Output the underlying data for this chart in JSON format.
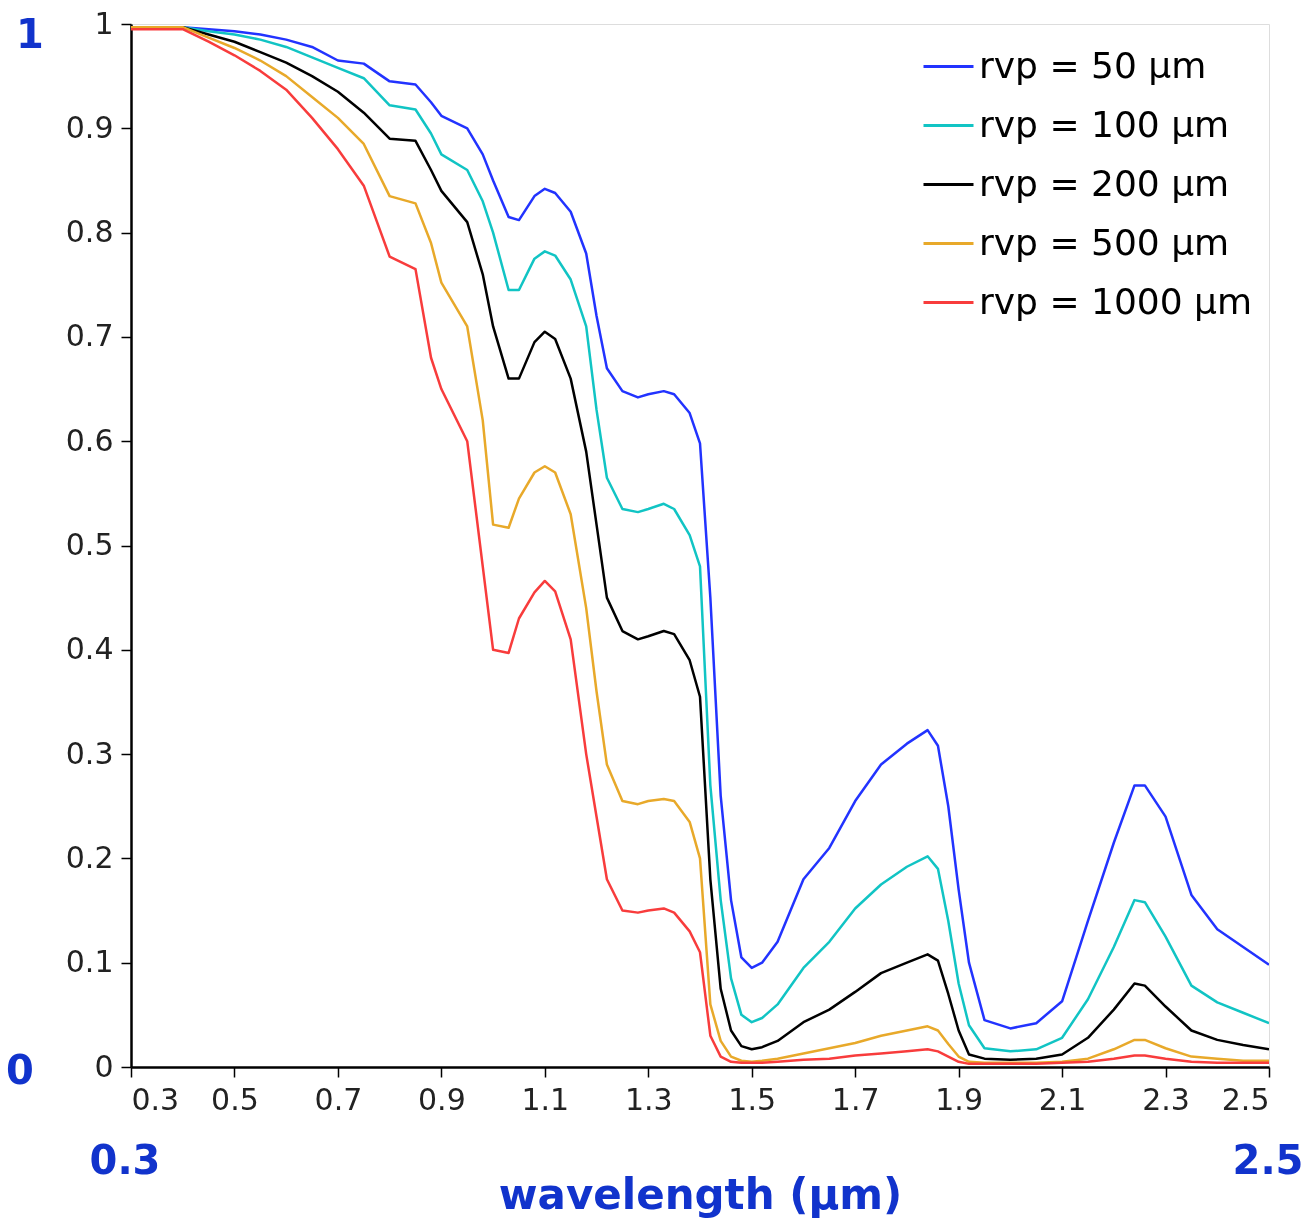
{
  "chart_data": {
    "type": "line",
    "xlabel": "wavelength (μm)",
    "x": [
      0.3,
      0.4,
      0.45,
      0.5,
      0.55,
      0.6,
      0.65,
      0.7,
      0.75,
      0.8,
      0.85,
      0.88,
      0.9,
      0.95,
      0.98,
      1.0,
      1.03,
      1.05,
      1.08,
      1.1,
      1.12,
      1.15,
      1.18,
      1.2,
      1.22,
      1.25,
      1.28,
      1.3,
      1.33,
      1.35,
      1.38,
      1.4,
      1.42,
      1.44,
      1.46,
      1.48,
      1.5,
      1.52,
      1.55,
      1.6,
      1.65,
      1.7,
      1.75,
      1.8,
      1.84,
      1.86,
      1.88,
      1.9,
      1.92,
      1.95,
      2.0,
      2.05,
      2.1,
      2.15,
      2.2,
      2.24,
      2.26,
      2.3,
      2.35,
      2.4,
      2.45,
      2.5
    ],
    "series": [
      {
        "name": "rvp = 50 μm",
        "color": "#2233ff",
        "values": [
          0.997,
          0.997,
          0.995,
          0.993,
          0.99,
          0.985,
          0.978,
          0.965,
          0.962,
          0.945,
          0.942,
          0.925,
          0.912,
          0.9,
          0.875,
          0.85,
          0.815,
          0.812,
          0.835,
          0.842,
          0.838,
          0.82,
          0.78,
          0.72,
          0.67,
          0.648,
          0.642,
          0.645,
          0.648,
          0.645,
          0.627,
          0.598,
          0.45,
          0.26,
          0.16,
          0.105,
          0.095,
          0.1,
          0.12,
          0.18,
          0.21,
          0.255,
          0.29,
          0.31,
          0.323,
          0.308,
          0.25,
          0.17,
          0.1,
          0.045,
          0.037,
          0.042,
          0.063,
          0.14,
          0.215,
          0.27,
          0.27,
          0.24,
          0.165,
          0.132,
          0.115,
          0.098
        ]
      },
      {
        "name": "rvp = 100 μm",
        "color": "#11c4c4",
        "values": [
          0.997,
          0.997,
          0.993,
          0.99,
          0.985,
          0.978,
          0.968,
          0.958,
          0.948,
          0.922,
          0.918,
          0.895,
          0.875,
          0.86,
          0.83,
          0.8,
          0.745,
          0.745,
          0.775,
          0.782,
          0.778,
          0.755,
          0.71,
          0.63,
          0.565,
          0.535,
          0.532,
          0.535,
          0.54,
          0.535,
          0.51,
          0.48,
          0.27,
          0.16,
          0.085,
          0.05,
          0.043,
          0.047,
          0.06,
          0.095,
          0.12,
          0.152,
          0.175,
          0.192,
          0.202,
          0.19,
          0.14,
          0.08,
          0.04,
          0.018,
          0.015,
          0.017,
          0.028,
          0.065,
          0.115,
          0.16,
          0.158,
          0.125,
          0.078,
          0.062,
          0.052,
          0.042
        ]
      },
      {
        "name": "rvp = 200 μm",
        "color": "#000000",
        "values": [
          0.997,
          0.997,
          0.99,
          0.983,
          0.973,
          0.963,
          0.95,
          0.935,
          0.915,
          0.89,
          0.888,
          0.86,
          0.84,
          0.81,
          0.76,
          0.71,
          0.66,
          0.66,
          0.695,
          0.705,
          0.698,
          0.66,
          0.59,
          0.52,
          0.45,
          0.418,
          0.41,
          0.413,
          0.418,
          0.415,
          0.39,
          0.355,
          0.18,
          0.075,
          0.035,
          0.02,
          0.017,
          0.019,
          0.025,
          0.043,
          0.055,
          0.072,
          0.09,
          0.1,
          0.108,
          0.102,
          0.07,
          0.035,
          0.012,
          0.008,
          0.007,
          0.008,
          0.012,
          0.028,
          0.055,
          0.08,
          0.078,
          0.058,
          0.035,
          0.026,
          0.021,
          0.017
        ]
      },
      {
        "name": "rvp = 500 μm",
        "color": "#e8a92a",
        "values": [
          0.997,
          0.997,
          0.987,
          0.977,
          0.965,
          0.95,
          0.93,
          0.91,
          0.885,
          0.835,
          0.828,
          0.79,
          0.752,
          0.71,
          0.62,
          0.52,
          0.517,
          0.545,
          0.57,
          0.576,
          0.57,
          0.53,
          0.44,
          0.36,
          0.29,
          0.255,
          0.252,
          0.255,
          0.257,
          0.255,
          0.235,
          0.2,
          0.06,
          0.025,
          0.01,
          0.006,
          0.005,
          0.006,
          0.008,
          0.013,
          0.018,
          0.023,
          0.03,
          0.035,
          0.039,
          0.035,
          0.022,
          0.01,
          0.005,
          0.004,
          0.004,
          0.004,
          0.005,
          0.008,
          0.017,
          0.026,
          0.026,
          0.018,
          0.01,
          0.008,
          0.006,
          0.006
        ]
      },
      {
        "name": "rvp = 1000 μm",
        "color": "#f83c3c",
        "values": [
          0.995,
          0.995,
          0.983,
          0.97,
          0.955,
          0.937,
          0.91,
          0.88,
          0.845,
          0.777,
          0.765,
          0.68,
          0.65,
          0.6,
          0.48,
          0.4,
          0.397,
          0.43,
          0.455,
          0.466,
          0.456,
          0.41,
          0.3,
          0.24,
          0.18,
          0.15,
          0.148,
          0.15,
          0.152,
          0.148,
          0.13,
          0.11,
          0.03,
          0.01,
          0.005,
          0.004,
          0.004,
          0.004,
          0.005,
          0.007,
          0.008,
          0.011,
          0.013,
          0.015,
          0.017,
          0.015,
          0.01,
          0.005,
          0.003,
          0.003,
          0.003,
          0.003,
          0.004,
          0.005,
          0.008,
          0.011,
          0.011,
          0.008,
          0.005,
          0.004,
          0.004,
          0.004
        ]
      }
    ],
    "xlim": [
      0.3,
      2.5
    ],
    "xticks": [
      0.3,
      0.5,
      0.7,
      0.9,
      1.1,
      1.3,
      1.5,
      1.7,
      1.9,
      2.1,
      2.3,
      2.5
    ],
    "ylim": [
      0,
      1
    ],
    "yticks": [
      0,
      0.1,
      0.2,
      0.3,
      0.4,
      0.5,
      0.6,
      0.7,
      0.8,
      0.9,
      1
    ],
    "grid": false,
    "legend": "top right",
    "line_style": "solid",
    "marker": "none",
    "annotations": [
      "1",
      "0",
      "0.3",
      "2.5"
    ]
  }
}
